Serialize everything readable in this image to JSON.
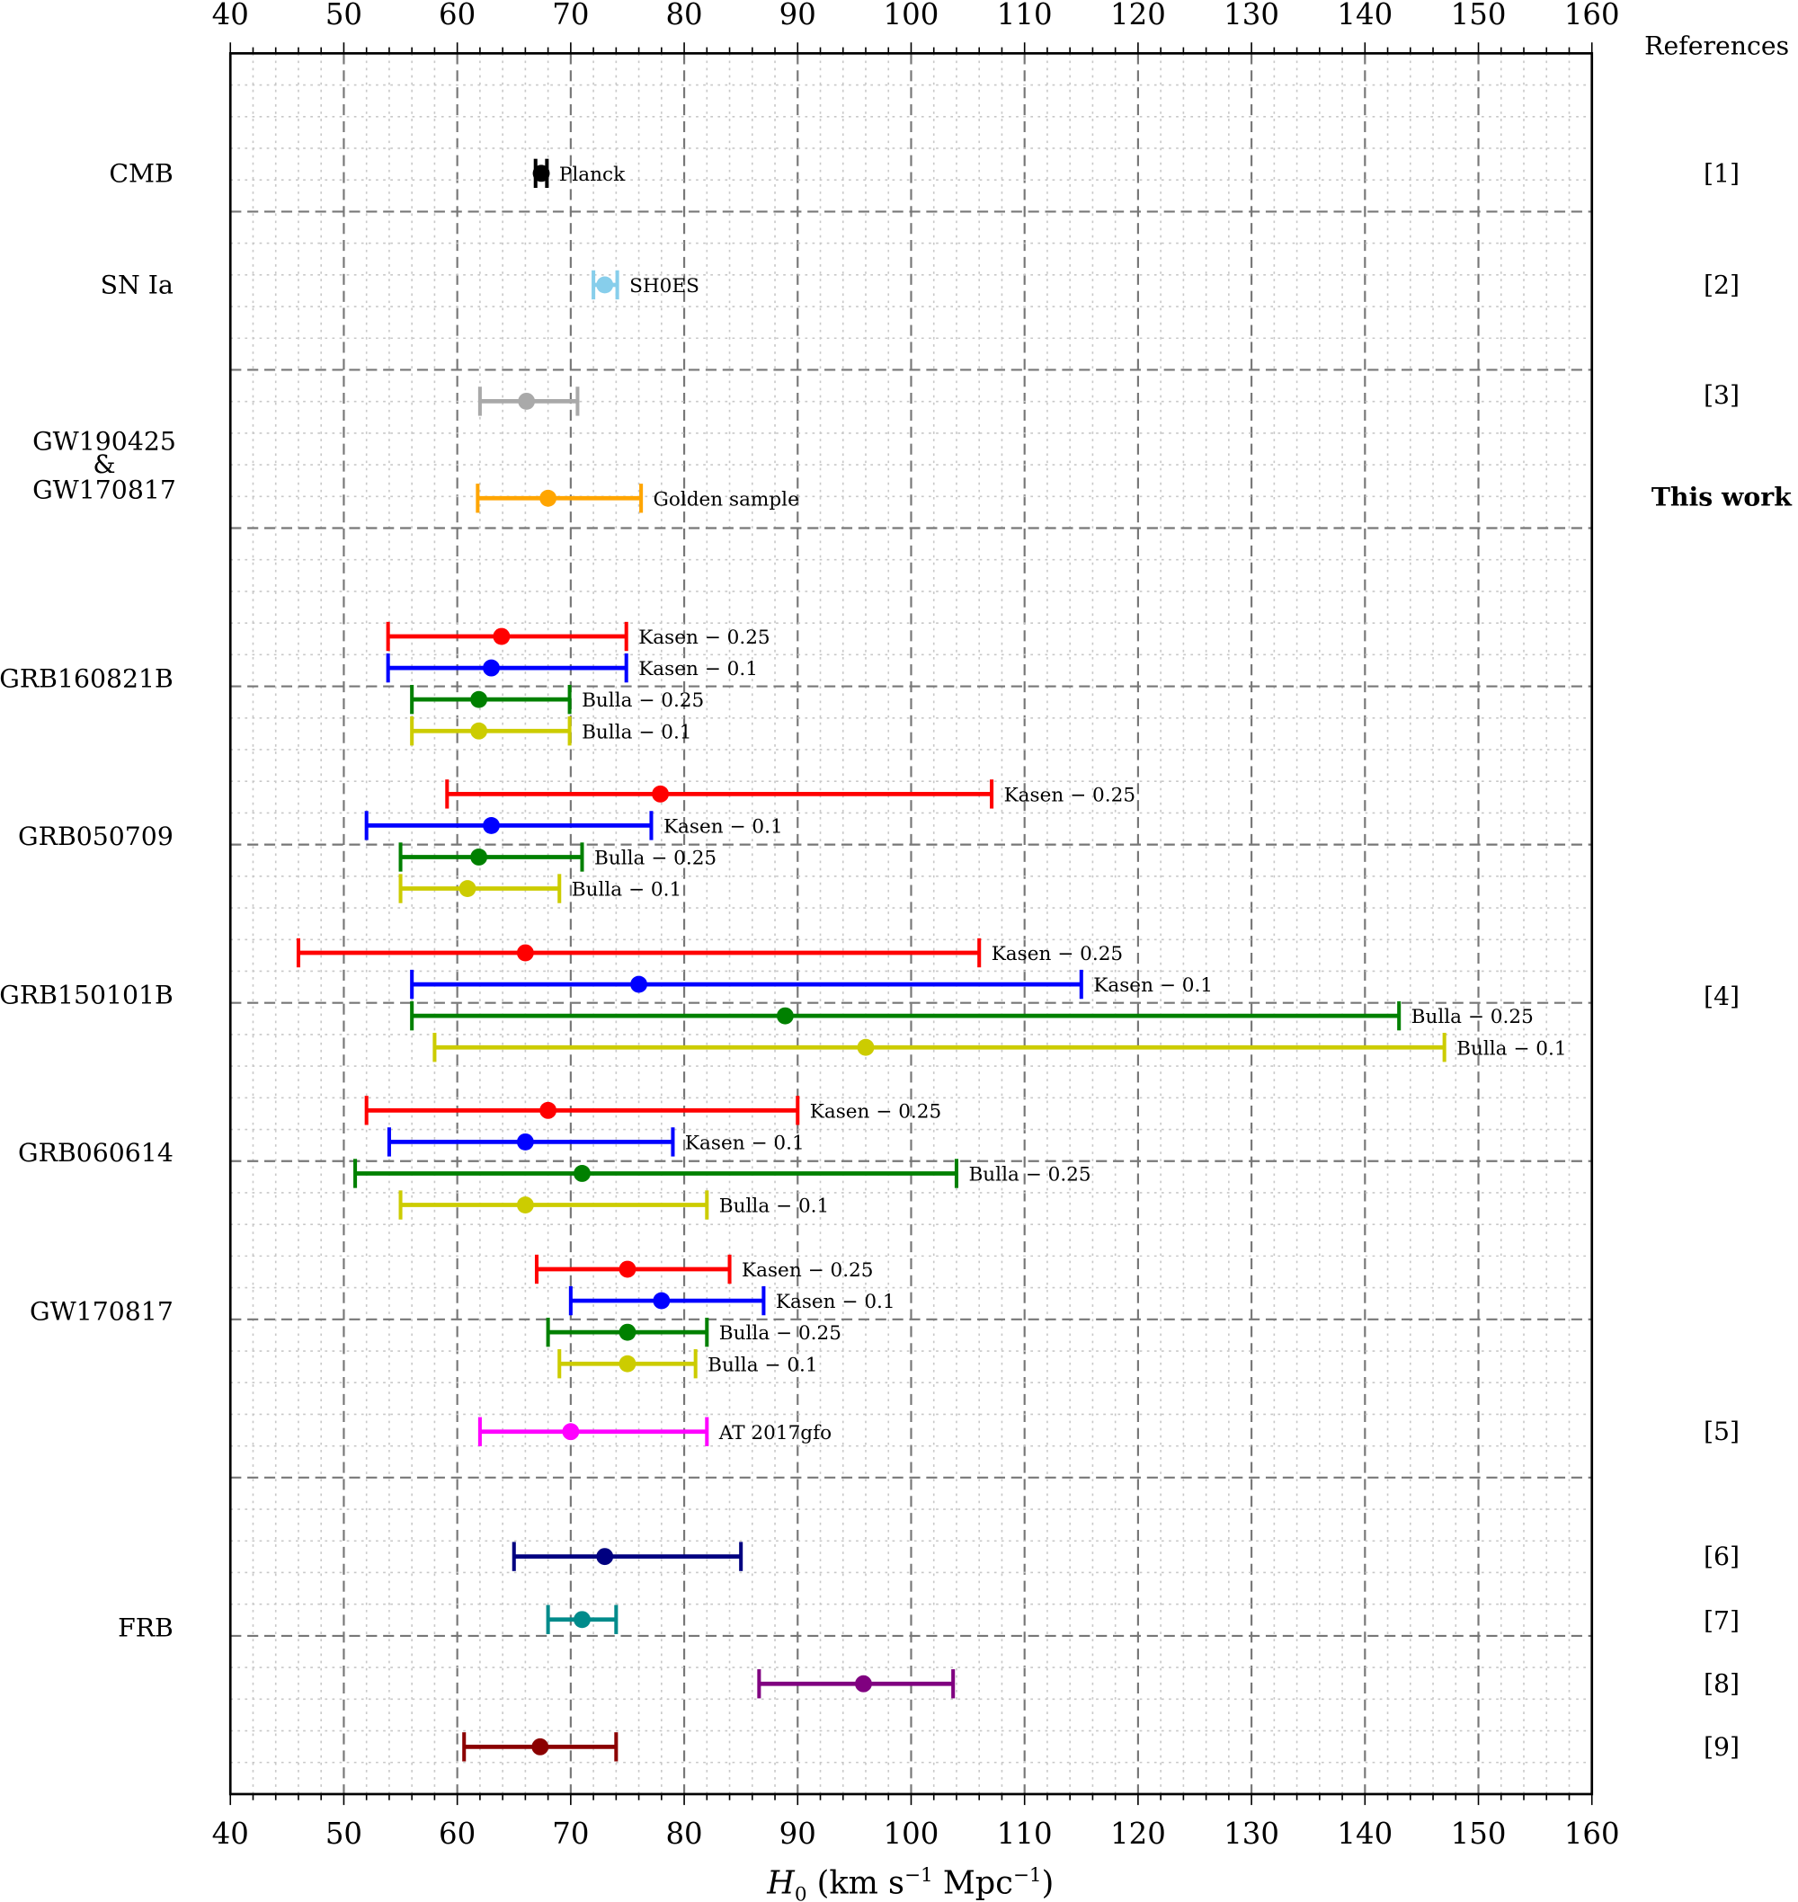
{
  "chart_data": {
    "type": "scatter",
    "title": "",
    "xlabel": "H0 (km s^-1 Mpc^-1)",
    "xlim": [
      40,
      160
    ],
    "xticks": [
      40,
      50,
      60,
      70,
      80,
      90,
      100,
      110,
      120,
      130,
      140,
      150,
      160
    ],
    "grid": true,
    "references_header": "References",
    "groups": [
      {
        "label": "CMB",
        "refs": [
          "[1]"
        ]
      },
      {
        "label": "SN Ia",
        "refs": [
          "[2]"
        ]
      },
      {
        "label_lines": [
          "GW190425",
          "&",
          "GW170817"
        ],
        "refs": [
          "[3]",
          "This work"
        ]
      },
      {
        "label": "GRB160821B"
      },
      {
        "label": "GRB050709"
      },
      {
        "label": "GRB150101B",
        "refs": [
          "[4]"
        ]
      },
      {
        "label": "GRB060614"
      },
      {
        "label": "GW170817",
        "refs": [
          "[5]"
        ]
      },
      {
        "label": "FRB",
        "refs": [
          "[6]",
          "[7]",
          "[8]",
          "[9]"
        ]
      }
    ],
    "points": [
      {
        "group": "CMB",
        "name": "Planck",
        "value": 67.4,
        "low": 66.9,
        "high": 67.9,
        "color": "#000000"
      },
      {
        "group": "SN Ia",
        "name": "SH0ES",
        "value": 73.0,
        "low": 72.0,
        "high": 74.1,
        "color": "#87ceeb"
      },
      {
        "group": "GW190425 & GW170817",
        "name": "",
        "value": 66.1,
        "low": 62.0,
        "high": 70.6,
        "color": "#a9a9a9"
      },
      {
        "group": "GW190425 & GW170817",
        "name": "Golden sample",
        "value": 68.0,
        "low": 61.8,
        "high": 76.2,
        "color": "#ffa500"
      },
      {
        "group": "GRB160821B",
        "name": "Kasen − 0.25",
        "value": 63.9,
        "low": 53.9,
        "high": 74.9,
        "color": "#ff0000"
      },
      {
        "group": "GRB160821B",
        "name": "Kasen − 0.1",
        "value": 63.0,
        "low": 53.9,
        "high": 74.9,
        "color": "#0000ff"
      },
      {
        "group": "GRB160821B",
        "name": "Bulla − 0.25",
        "value": 61.9,
        "low": 56.0,
        "high": 69.9,
        "color": "#008000"
      },
      {
        "group": "GRB160821B",
        "name": "Bulla − 0.1",
        "value": 61.9,
        "low": 56.0,
        "high": 69.9,
        "color": "#cccc00"
      },
      {
        "group": "GRB050709",
        "name": "Kasen − 0.25",
        "value": 77.9,
        "low": 59.1,
        "high": 107.1,
        "color": "#ff0000"
      },
      {
        "group": "GRB050709",
        "name": "Kasen − 0.1",
        "value": 63.0,
        "low": 52.0,
        "high": 77.1,
        "color": "#0000ff"
      },
      {
        "group": "GRB050709",
        "name": "Bulla − 0.25",
        "value": 61.9,
        "low": 55.0,
        "high": 71.0,
        "color": "#008000"
      },
      {
        "group": "GRB050709",
        "name": "Bulla − 0.1",
        "value": 60.9,
        "low": 55.0,
        "high": 69.0,
        "color": "#cccc00"
      },
      {
        "group": "GRB150101B",
        "name": "Kasen − 0.25",
        "value": 66.0,
        "low": 46.0,
        "high": 106.0,
        "color": "#ff0000"
      },
      {
        "group": "GRB150101B",
        "name": "Kasen − 0.1",
        "value": 76.0,
        "low": 56.0,
        "high": 115.0,
        "color": "#0000ff"
      },
      {
        "group": "GRB150101B",
        "name": "Bulla − 0.25",
        "value": 88.9,
        "low": 56.0,
        "high": 143.0,
        "color": "#008000"
      },
      {
        "group": "GRB150101B",
        "name": "Bulla − 0.1",
        "value": 96.0,
        "low": 58.0,
        "high": 147.0,
        "color": "#cccc00"
      },
      {
        "group": "GRB060614",
        "name": "Kasen − 0.25",
        "value": 68.0,
        "low": 52.0,
        "high": 90.0,
        "color": "#ff0000"
      },
      {
        "group": "GRB060614",
        "name": "Kasen − 0.1",
        "value": 66.0,
        "low": 54.0,
        "high": 79.0,
        "color": "#0000ff"
      },
      {
        "group": "GRB060614",
        "name": "Bulla − 0.25",
        "value": 71.0,
        "low": 51.0,
        "high": 104.0,
        "color": "#008000"
      },
      {
        "group": "GRB060614",
        "name": "Bulla − 0.1",
        "value": 66.0,
        "low": 55.0,
        "high": 82.0,
        "color": "#cccc00"
      },
      {
        "group": "GW170817",
        "name": "Kasen − 0.25",
        "value": 75.0,
        "low": 67.0,
        "high": 84.0,
        "color": "#ff0000"
      },
      {
        "group": "GW170817",
        "name": "Kasen − 0.1",
        "value": 78.0,
        "low": 70.0,
        "high": 87.0,
        "color": "#0000ff"
      },
      {
        "group": "GW170817",
        "name": "Bulla − 0.25",
        "value": 75.0,
        "low": 68.0,
        "high": 82.0,
        "color": "#008000"
      },
      {
        "group": "GW170817",
        "name": "Bulla − 0.1",
        "value": 75.0,
        "low": 69.0,
        "high": 81.0,
        "color": "#cccc00"
      },
      {
        "group": "GW170817",
        "name": "AT 2017gfo",
        "value": 70.0,
        "low": 62.0,
        "high": 82.0,
        "color": "#ff00ff"
      },
      {
        "group": "FRB",
        "name": "",
        "value": 73.0,
        "low": 65.0,
        "high": 85.0,
        "color": "#000080"
      },
      {
        "group": "FRB",
        "name": "",
        "value": 71.0,
        "low": 68.0,
        "high": 74.0,
        "color": "#008b8b"
      },
      {
        "group": "FRB",
        "name": "",
        "value": 95.8,
        "low": 86.6,
        "high": 103.7,
        "color": "#800080"
      },
      {
        "group": "FRB",
        "name": "",
        "value": 67.3,
        "low": 60.6,
        "high": 74.0,
        "color": "#8b0000"
      }
    ]
  }
}
